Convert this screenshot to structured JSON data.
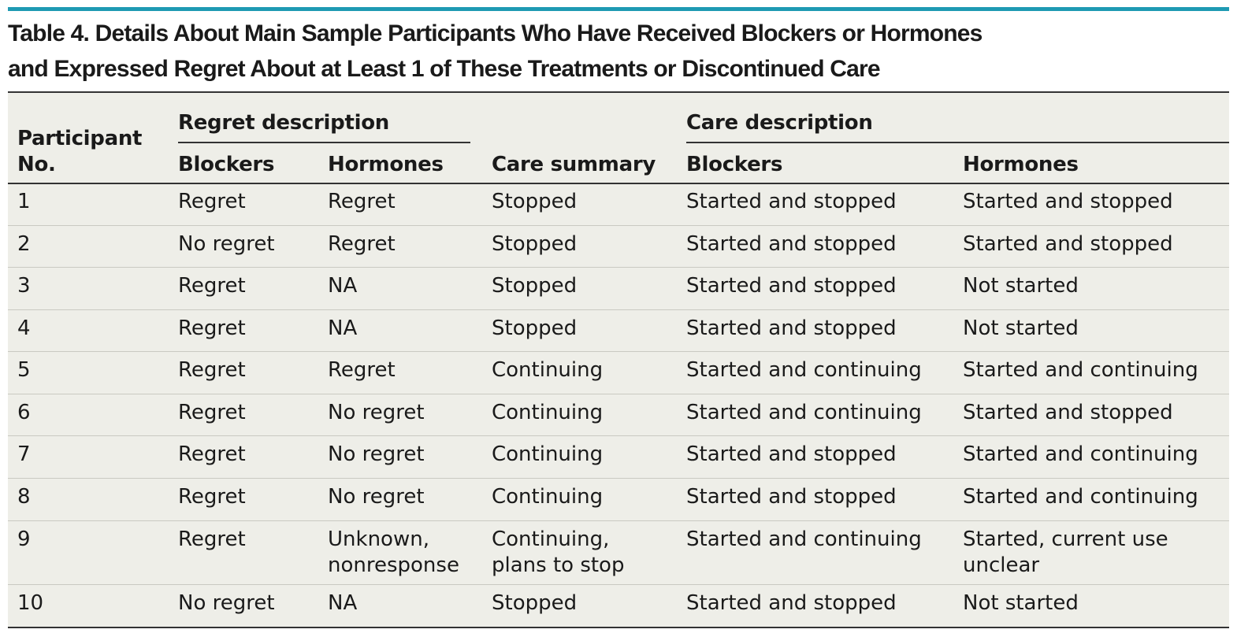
{
  "title": {
    "line1": "Table 4. Details About Main Sample Participants Who Have Received Blockers or Hormones",
    "line2": "and Expressed Regret About at Least 1 of These Treatments or Discontinued Care"
  },
  "headers": {
    "participant_line1": "Participant",
    "participant_line2": "No.",
    "regret_group": "Regret description",
    "care_group": "Care description",
    "regret_blockers": "Blockers",
    "regret_hormones": "Hormones",
    "care_summary": "Care summary",
    "care_blockers": "Blockers",
    "care_hormones": "Hormones"
  },
  "rows": [
    {
      "no": "1",
      "regret_blockers": "Regret",
      "regret_hormones": "Regret",
      "summary": "Stopped",
      "care_blockers": "Started and stopped",
      "care_hormones": "Started and stopped"
    },
    {
      "no": "2",
      "regret_blockers": "No regret",
      "regret_hormones": "Regret",
      "summary": "Stopped",
      "care_blockers": "Started and stopped",
      "care_hormones": "Started and stopped"
    },
    {
      "no": "3",
      "regret_blockers": "Regret",
      "regret_hormones": "NA",
      "summary": "Stopped",
      "care_blockers": "Started and stopped",
      "care_hormones": "Not started"
    },
    {
      "no": "4",
      "regret_blockers": "Regret",
      "regret_hormones": "NA",
      "summary": "Stopped",
      "care_blockers": "Started and stopped",
      "care_hormones": "Not started"
    },
    {
      "no": "5",
      "regret_blockers": "Regret",
      "regret_hormones": "Regret",
      "summary": "Continuing",
      "care_blockers": "Started and continuing",
      "care_hormones": "Started and continuing"
    },
    {
      "no": "6",
      "regret_blockers": "Regret",
      "regret_hormones": "No regret",
      "summary": "Continuing",
      "care_blockers": "Started and continuing",
      "care_hormones": "Started and stopped"
    },
    {
      "no": "7",
      "regret_blockers": "Regret",
      "regret_hormones": "No regret",
      "summary": "Continuing",
      "care_blockers": "Started and stopped",
      "care_hormones": "Started and continuing"
    },
    {
      "no": "8",
      "regret_blockers": "Regret",
      "regret_hormones": "No regret",
      "summary": "Continuing",
      "care_blockers": "Started and stopped",
      "care_hormones": "Started and continuing"
    },
    {
      "no": "9",
      "regret_blockers": "Regret",
      "regret_hormones": "Unknown,\nnonresponse",
      "summary": "Continuing,\nplans to stop",
      "care_blockers": "Started and continuing",
      "care_hormones": "Started, current use\nunclear"
    },
    {
      "no": "10",
      "regret_blockers": "No regret",
      "regret_hormones": "NA",
      "summary": "Stopped",
      "care_blockers": "Started and stopped",
      "care_hormones": "Not started"
    }
  ],
  "colors": {
    "accent_rule": "#1f9ab3",
    "table_background": "#eeeee8",
    "text": "#1a1a1a"
  }
}
